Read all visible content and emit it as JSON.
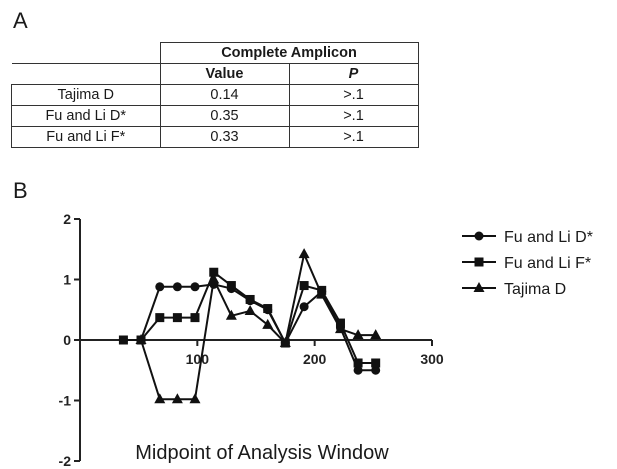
{
  "panel_a_label": "A",
  "panel_b_label": "B",
  "table": {
    "group_header": "Complete Amplicon",
    "col_value": "Value",
    "col_p": "P",
    "rows": [
      {
        "name": "Tajima D",
        "value": "0.14",
        "p": ">.1"
      },
      {
        "name": "Fu and Li D*",
        "value": "0.35",
        "p": ">.1"
      },
      {
        "name": "Fu and Li F*",
        "value": "0.33",
        "p": ">.1"
      }
    ]
  },
  "chart_data": {
    "type": "line",
    "xlabel": "Midpoint of Analysis Window",
    "ylabel": "",
    "xlim": [
      0,
      300
    ],
    "ylim": [
      -2,
      2
    ],
    "x_ticks": [
      100,
      200,
      300
    ],
    "y_ticks": [
      -2,
      -1,
      0,
      1,
      2
    ],
    "legend_position": "right",
    "series": [
      {
        "name": "Fu and Li D*",
        "marker": "circle",
        "x": [
          37,
          52,
          68,
          83,
          98,
          114,
          129,
          145,
          160,
          175,
          191,
          206,
          222,
          237,
          252
        ],
        "y": [
          0,
          0,
          0.88,
          0.88,
          0.88,
          0.92,
          0.85,
          0.65,
          0.5,
          -0.05,
          0.55,
          0.8,
          0.2,
          -0.5,
          -0.5
        ]
      },
      {
        "name": "Fu and Li F*",
        "marker": "square",
        "x": [
          37,
          52,
          68,
          83,
          98,
          114,
          129,
          145,
          160,
          175,
          191,
          206,
          222,
          237,
          252
        ],
        "y": [
          0,
          0,
          0.37,
          0.37,
          0.37,
          1.12,
          0.9,
          0.67,
          0.52,
          -0.05,
          0.9,
          0.82,
          0.28,
          -0.38,
          -0.38
        ]
      },
      {
        "name": "Tajima D",
        "marker": "triangle",
        "x": [
          52,
          68,
          83,
          98,
          114,
          129,
          145,
          160,
          175,
          191,
          206,
          222,
          237,
          252
        ],
        "y": [
          0,
          -0.98,
          -0.98,
          -0.98,
          1.0,
          0.4,
          0.48,
          0.25,
          -0.05,
          1.42,
          0.75,
          0.18,
          0.08,
          0.08
        ]
      }
    ]
  }
}
